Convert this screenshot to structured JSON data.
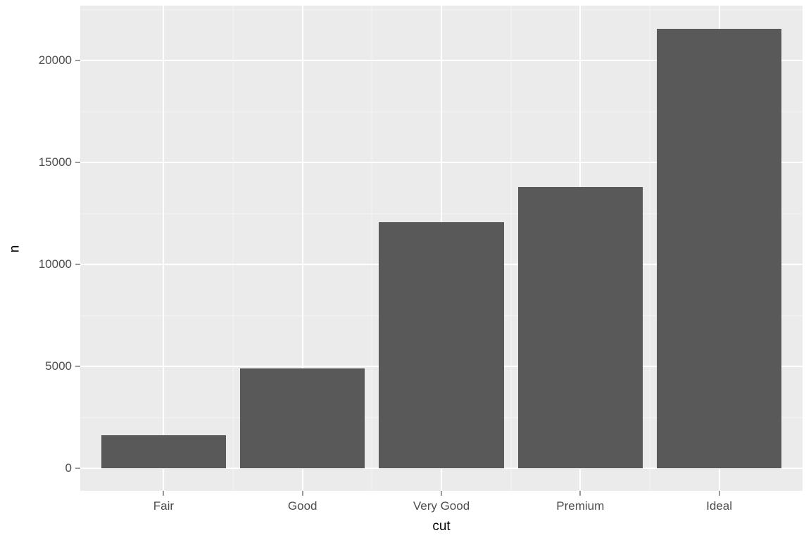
{
  "chart": {
    "type": "bar",
    "xlabel": "cut",
    "ylabel": "n",
    "categories": [
      "Fair",
      "Good",
      "Very Good",
      "Premium",
      "Ideal"
    ],
    "values": [
      1610,
      4906,
      12082,
      13791,
      21551
    ],
    "bar_color": "#595959",
    "panel_background": "#ebebeb",
    "grid_major_color": "#ffffff",
    "grid_minor_color": "#f6f6f6",
    "page_background": "#ffffff",
    "y_ticks": [
      0,
      5000,
      10000,
      15000,
      20000
    ],
    "y_minor_ticks": [
      2500,
      7500,
      12500,
      17500,
      22500
    ],
    "ylim": [
      -1100,
      22700
    ],
    "bar_width_rel": 0.9,
    "tick_label_fontsize": 17,
    "axis_title_fontsize": 19,
    "tick_label_color": "#4d4d4d",
    "axis_title_color": "#000000"
  }
}
